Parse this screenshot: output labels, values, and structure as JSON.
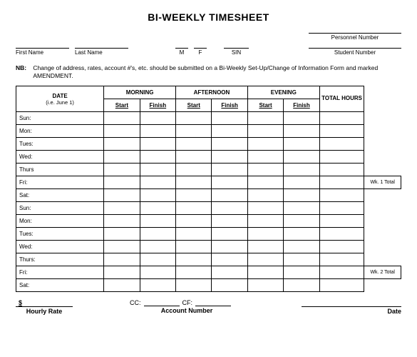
{
  "title": "BI-WEEKLY TIMESHEET",
  "fields": {
    "first_name": "First Name",
    "last_name": "Last Name",
    "m": "M",
    "f": "F",
    "sin": "SIN",
    "personnel_number": "Personnel Number",
    "student_number": "Student Number"
  },
  "nb": {
    "label": "NB:",
    "text": "Change of address, rates, account #'s, etc. should be submitted on a Bi-Weekly Set-Up/Change of Information Form and marked AMENDMENT."
  },
  "table": {
    "date_header": "DATE",
    "date_sub": "(i.e. June 1)",
    "morning": "MORNING",
    "afternoon": "AFTERNOON",
    "evening": "EVENING",
    "total_hours": "TOTAL HOURS",
    "start": "Start",
    "finish": "Finish",
    "days": [
      "Sun:",
      "Mon:",
      "Tues:",
      "Wed:",
      "Thurs",
      "Fri:",
      "Sat:",
      "Sun:",
      "Mon:",
      "Tues:",
      "Wed:",
      "Thurs:",
      "Fri:",
      "Sat:"
    ],
    "wk1_total": "Wk. 1 Total",
    "wk2_total": "Wk. 2 Total"
  },
  "footer": {
    "dollar": "$",
    "hourly_rate": "Hourly Rate",
    "cc": "CC:",
    "cf": "CF:",
    "account_number": "Account Number",
    "date": "Date"
  }
}
